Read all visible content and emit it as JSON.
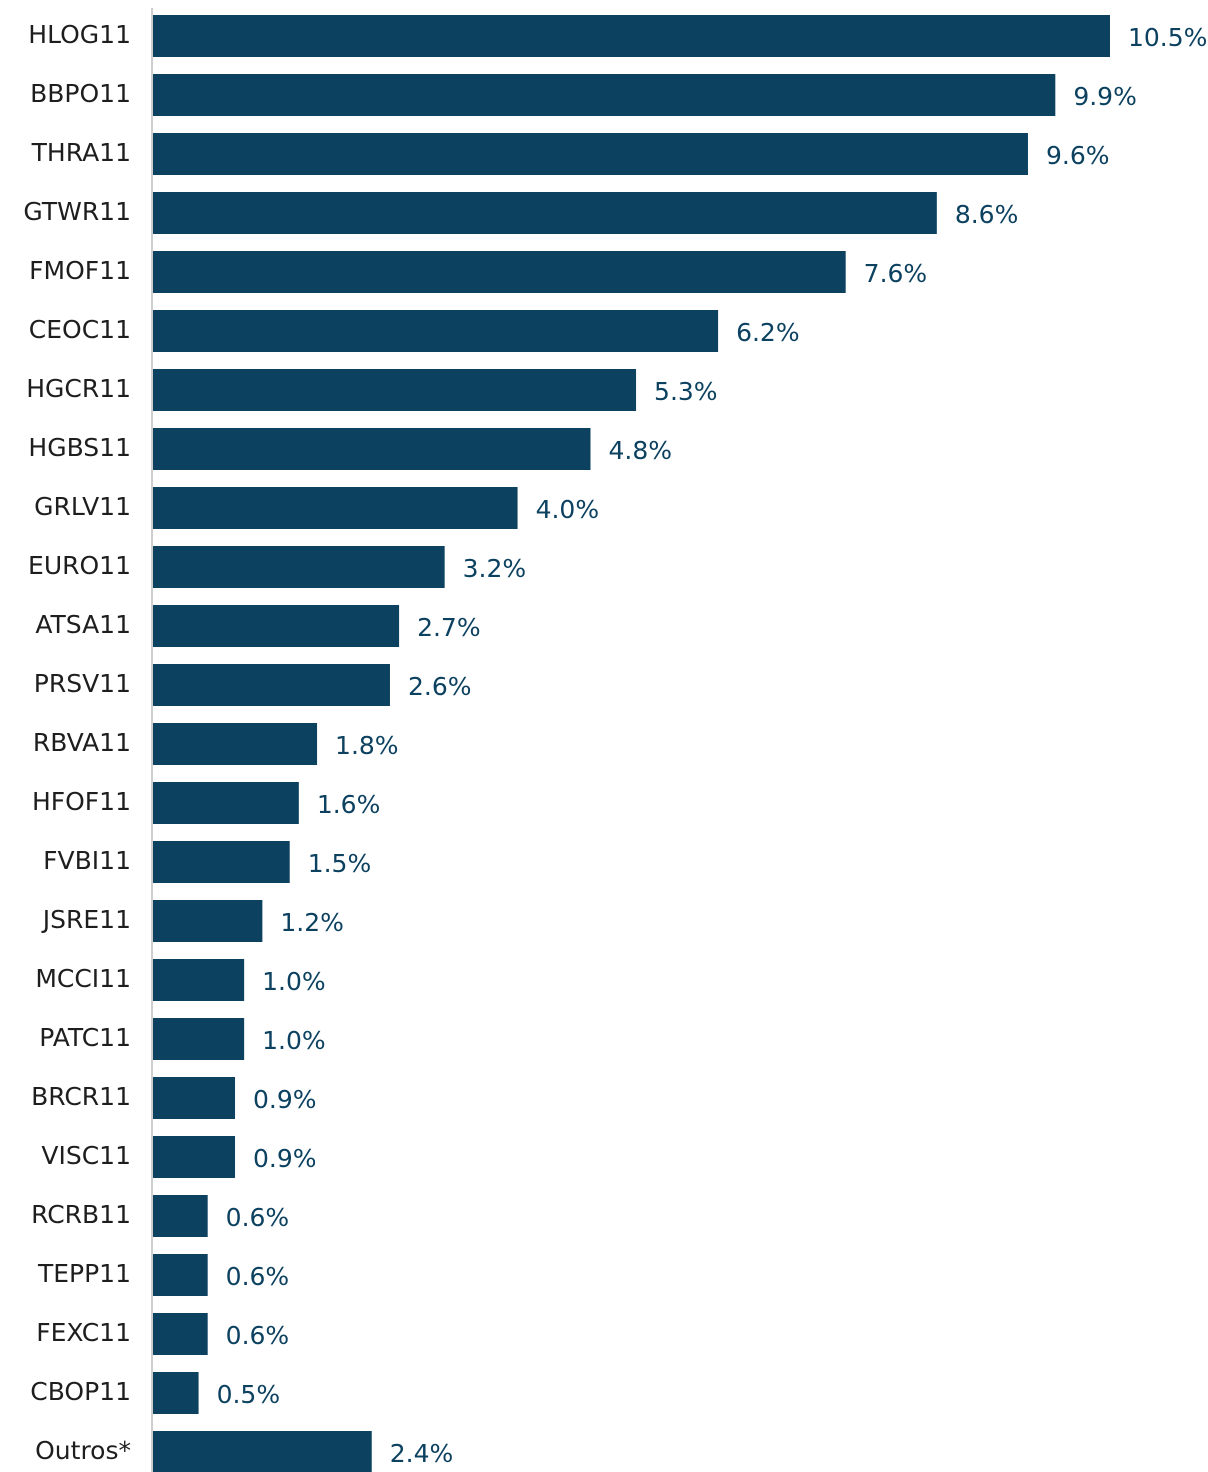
{
  "chart_data": {
    "type": "bar",
    "orientation": "horizontal",
    "color": "#0c4160",
    "categories": [
      "HLOG11",
      "BBPO11",
      "THRA11",
      "GTWR11",
      "FMOF11",
      "CEOC11",
      "HGCR11",
      "HGBS11",
      "GRLV11",
      "EURO11",
      "ATSA11",
      "PRSV11",
      "RBVA11",
      "HFOF11",
      "FVBI11",
      "JSRE11",
      "MCCI11",
      "PATC11",
      "BRCR11",
      "VISC11",
      "RCRB11",
      "TEPP11",
      "FEXC11",
      "CBOP11",
      "Outros*"
    ],
    "values": [
      10.5,
      9.9,
      9.6,
      8.6,
      7.6,
      6.2,
      5.3,
      4.8,
      4.0,
      3.2,
      2.7,
      2.6,
      1.8,
      1.6,
      1.5,
      1.2,
      1.0,
      1.0,
      0.9,
      0.9,
      0.6,
      0.6,
      0.6,
      0.5,
      2.4
    ],
    "value_labels": [
      "10.5%",
      "9.9%",
      "9.6%",
      "8.6%",
      "7.6%",
      "6.2%",
      "5.3%",
      "4.8%",
      "4.0%",
      "3.2%",
      "2.7%",
      "2.6%",
      "1.8%",
      "1.6%",
      "1.5%",
      "1.2%",
      "1.0%",
      "1.0%",
      "0.9%",
      "0.9%",
      "0.6%",
      "0.6%",
      "0.6%",
      "0.5%",
      "2.4%"
    ]
  }
}
